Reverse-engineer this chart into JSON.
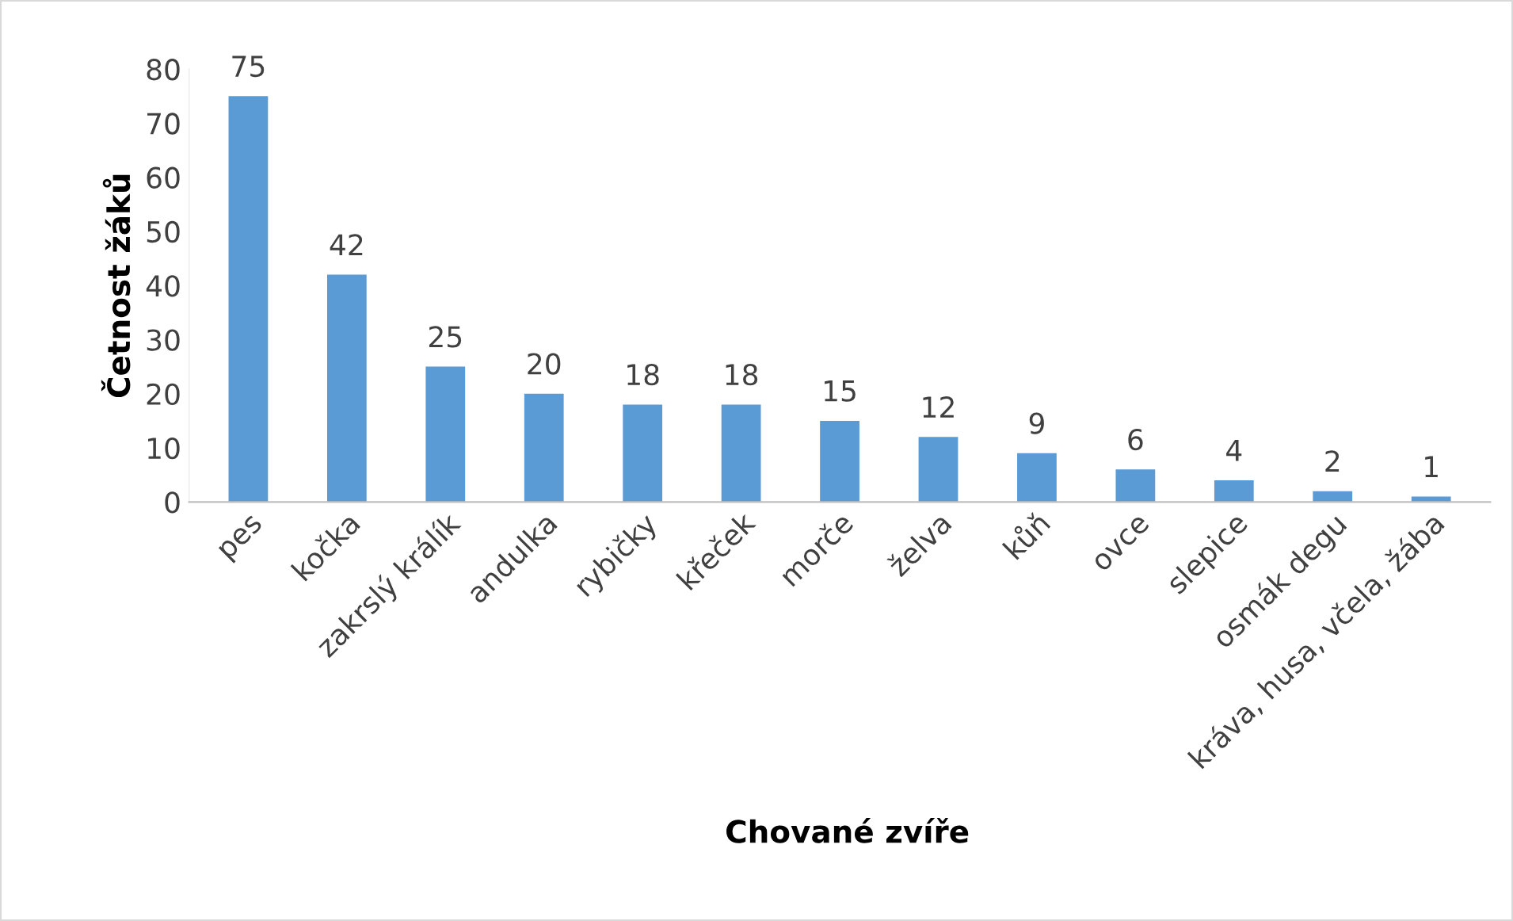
{
  "chart_data": {
    "type": "bar",
    "xlabel": "Chované zvíře",
    "ylabel": "Četnost žáků",
    "categories": [
      "pes",
      "kočka",
      "zakrslý králík",
      "andulka",
      "rybičky",
      "křeček",
      "morče",
      "želva",
      "kůň",
      "ovce",
      "slepice",
      "osmák degu",
      "kráva, husa, včela, žába"
    ],
    "values": [
      75,
      42,
      25,
      20,
      18,
      18,
      15,
      12,
      9,
      6,
      4,
      2,
      1
    ],
    "color": "#5b9bd5",
    "ylim": [
      0,
      80
    ],
    "yticks": [
      0,
      10,
      20,
      30,
      40,
      50,
      60,
      70,
      80
    ],
    "data_labels": true,
    "grid": false,
    "legend": false
  }
}
